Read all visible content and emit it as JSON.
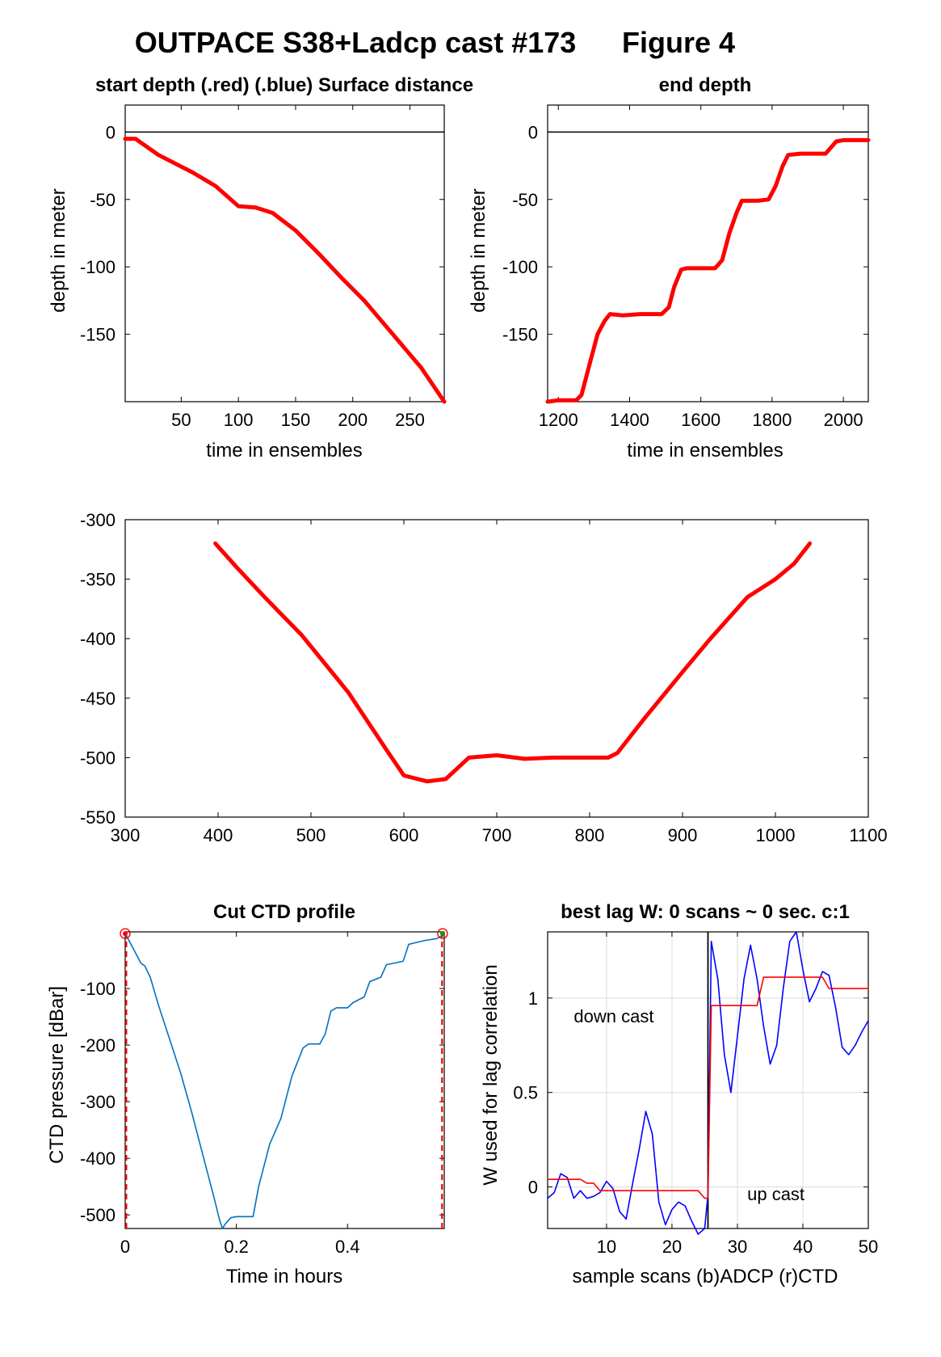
{
  "figure": {
    "title": "OUTPACE S38+Ladcp cast #173",
    "figure_label": "Figure 4"
  },
  "chart_data": [
    {
      "id": "start",
      "type": "line",
      "title": "start depth (.red) (.blue) Surface distance",
      "xlabel": "time in ensembles",
      "ylabel": "depth in meter",
      "xlim": [
        1,
        280
      ],
      "ylim": [
        -200,
        20
      ],
      "xticks": [
        50,
        100,
        150,
        200,
        250
      ],
      "yticks": [
        0,
        -50,
        -100,
        -150
      ],
      "hline": 0,
      "grid": false,
      "series": [
        {
          "color": "#ff0000",
          "x": [
            1,
            10,
            30,
            60,
            80,
            100,
            115,
            130,
            150,
            170,
            190,
            210,
            240,
            260,
            280
          ],
          "y": [
            -5,
            -5,
            -17,
            -30,
            -40,
            -55,
            -56,
            -60,
            -73,
            -90,
            -108,
            -125,
            -155,
            -175,
            -200
          ]
        }
      ]
    },
    {
      "id": "end",
      "type": "line",
      "title": "end depth",
      "xlabel": "time in ensembles",
      "ylabel": "depth in meter",
      "xlim": [
        1170,
        2070
      ],
      "ylim": [
        -200,
        20
      ],
      "xticks": [
        1200,
        1400,
        1600,
        1800,
        2000
      ],
      "yticks": [
        0,
        -50,
        -100,
        -150
      ],
      "hline": 0,
      "grid": false,
      "series": [
        {
          "color": "#ff0000",
          "x": [
            1170,
            1200,
            1250,
            1265,
            1290,
            1310,
            1330,
            1345,
            1380,
            1430,
            1490,
            1510,
            1525,
            1545,
            1560,
            1600,
            1640,
            1660,
            1680,
            1700,
            1715,
            1760,
            1790,
            1810,
            1830,
            1845,
            1880,
            1950,
            1980,
            2000,
            2070
          ],
          "y": [
            -200,
            -199,
            -199,
            -195,
            -170,
            -150,
            -140,
            -135,
            -136,
            -135,
            -135,
            -130,
            -115,
            -102,
            -101,
            -101,
            -101,
            -95,
            -75,
            -60,
            -51,
            -51,
            -50,
            -40,
            -25,
            -17,
            -16,
            -16,
            -7,
            -6,
            -6
          ]
        }
      ]
    },
    {
      "id": "middle",
      "type": "line",
      "title": "",
      "xlabel": "",
      "ylabel": "",
      "xlim": [
        300,
        1100
      ],
      "ylim": [
        -550,
        -300
      ],
      "xticks": [
        300,
        400,
        500,
        600,
        700,
        800,
        900,
        1000,
        1100
      ],
      "yticks": [
        -300,
        -350,
        -400,
        -450,
        -500,
        -550
      ],
      "grid": false,
      "series": [
        {
          "color": "#ff0000",
          "x": [
            397,
            420,
            450,
            490,
            540,
            580,
            600,
            625,
            645,
            670,
            700,
            730,
            760,
            800,
            820,
            830,
            860,
            900,
            930,
            970,
            1000,
            1020,
            1037
          ],
          "y": [
            -320,
            -340,
            -365,
            -397,
            -445,
            -492,
            -515,
            -520,
            -518,
            -500,
            -498,
            -501,
            -500,
            -500,
            -500,
            -496,
            -466,
            -428,
            -400,
            -365,
            -350,
            -337,
            -320
          ]
        }
      ]
    },
    {
      "id": "ctd",
      "type": "line",
      "title": "Cut CTD profile",
      "xlabel": "Time in hours",
      "ylabel": "CTD pressure [dBar]",
      "xlim": [
        0,
        0.574
      ],
      "ylim": [
        -524,
        0
      ],
      "xticks": [
        0,
        0.2,
        0.4
      ],
      "yticks": [
        -100,
        -200,
        -300,
        -400,
        -500
      ],
      "grid": false,
      "vlines": [
        0.002,
        0.57
      ],
      "markers": [
        {
          "x": 0.0,
          "y": -3,
          "color": "#ff0000"
        },
        {
          "x": 0.571,
          "y": -3,
          "color": "#00a000"
        }
      ],
      "series": [
        {
          "color": "#0072bd",
          "x": [
            0,
            0.005,
            0.012,
            0.02,
            0.028,
            0.035,
            0.045,
            0.06,
            0.08,
            0.1,
            0.12,
            0.14,
            0.16,
            0.17,
            0.175,
            0.18,
            0.19,
            0.2,
            0.23,
            0.24,
            0.26,
            0.28,
            0.3,
            0.32,
            0.33,
            0.35,
            0.36,
            0.37,
            0.38,
            0.4,
            0.41,
            0.43,
            0.44,
            0.46,
            0.47,
            0.5,
            0.51,
            0.54,
            0.56,
            0.573
          ],
          "y": [
            -3,
            -12,
            -25,
            -40,
            -55,
            -60,
            -80,
            -130,
            -190,
            -250,
            -320,
            -395,
            -470,
            -510,
            -524,
            -516,
            -505,
            -503,
            -503,
            -450,
            -375,
            -330,
            -255,
            -205,
            -198,
            -198,
            -180,
            -140,
            -134,
            -134,
            -125,
            -115,
            -88,
            -80,
            -58,
            -52,
            -22,
            -15,
            -12,
            -5
          ]
        }
      ]
    },
    {
      "id": "lag",
      "type": "line",
      "title": "best lag W: 0 scans ~ 0 sec.  c:1",
      "xlabel": "sample scans (b)ADCP (r)CTD",
      "ylabel": "W used for lag correlation",
      "xlim": [
        1,
        50
      ],
      "ylim": [
        -0.22,
        1.35
      ],
      "xticks": [
        10,
        20,
        30,
        40,
        50
      ],
      "yticks": [
        0,
        0.5,
        1
      ],
      "grid": true,
      "vline": 25.5,
      "annotations": [
        {
          "text": "down cast",
          "x": 5,
          "y": 0.87
        },
        {
          "text": "up cast",
          "x": 31.5,
          "y": -0.07
        }
      ],
      "series": [
        {
          "name": "(b)ADCP",
          "color": "#0000ff",
          "x": [
            1,
            2,
            3,
            4,
            5,
            6,
            7,
            8,
            9,
            10,
            11,
            12,
            13,
            14,
            15,
            16,
            17,
            18,
            19,
            20,
            21,
            22,
            23,
            24,
            25,
            25.5,
            26,
            27,
            28,
            29,
            30,
            31,
            32,
            33,
            34,
            35,
            36,
            37,
            38,
            39,
            40,
            41,
            42,
            43,
            44,
            45,
            46,
            47,
            48,
            49,
            50
          ],
          "y": [
            -0.06,
            -0.03,
            0.07,
            0.05,
            -0.06,
            -0.02,
            -0.06,
            -0.05,
            -0.03,
            0.03,
            -0.01,
            -0.13,
            -0.17,
            0.02,
            0.2,
            0.4,
            0.28,
            -0.08,
            -0.2,
            -0.12,
            -0.08,
            -0.1,
            -0.18,
            -0.25,
            -0.22,
            -0.04,
            1.3,
            1.1,
            0.7,
            0.5,
            0.8,
            1.1,
            1.28,
            1.1,
            0.85,
            0.65,
            0.75,
            1.05,
            1.3,
            1.35,
            1.15,
            0.98,
            1.05,
            1.14,
            1.12,
            0.95,
            0.74,
            0.7,
            0.75,
            0.82,
            0.88
          ]
        },
        {
          "name": "(r)CTD",
          "color": "#ff0000",
          "x": [
            1,
            6,
            7,
            8,
            9,
            24,
            25,
            25.5,
            26,
            33,
            34,
            43,
            44,
            50
          ],
          "y": [
            0.04,
            0.04,
            0.02,
            0.02,
            -0.02,
            -0.02,
            -0.06,
            -0.06,
            0.96,
            0.96,
            1.11,
            1.11,
            1.05,
            1.05
          ]
        }
      ]
    }
  ]
}
